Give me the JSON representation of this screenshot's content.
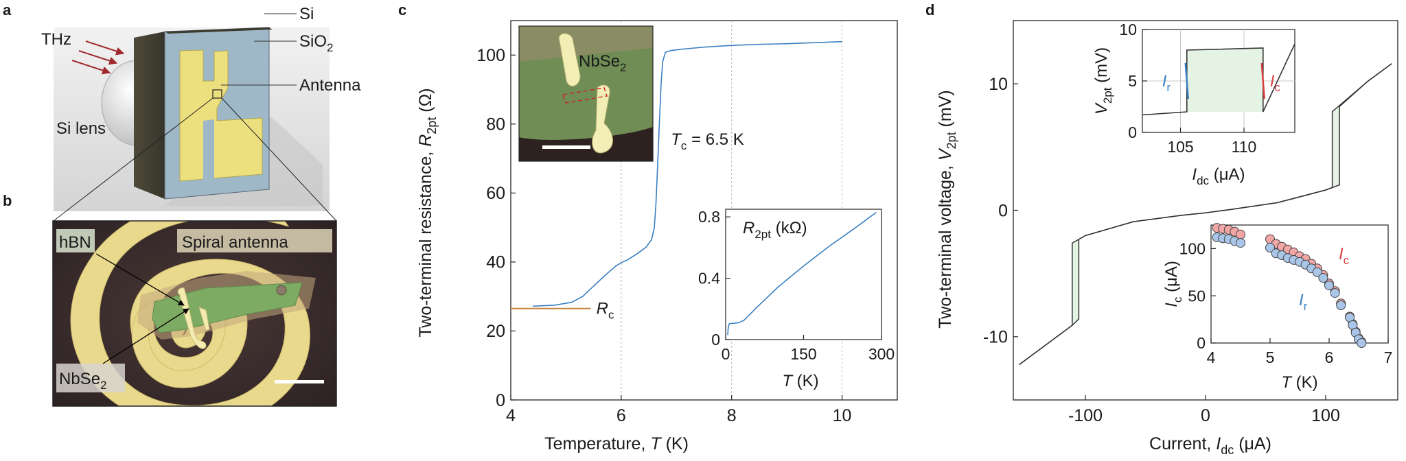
{
  "panels": {
    "a": {
      "letter": "a",
      "labels": {
        "si": "Si",
        "sio2_main": "SiO",
        "sio2_sub": "2",
        "antenna": "Antenna",
        "thz": "THz",
        "lens": "Si lens"
      }
    },
    "b": {
      "letter": "b",
      "labels": {
        "hbn": "hBN",
        "spiral": "Spiral antenna",
        "nbse2_main": "NbSe",
        "nbse2_sub": "2"
      }
    },
    "c": {
      "letter": "c"
    },
    "d": {
      "letter": "d"
    }
  },
  "text_c": {
    "ylabel_main": "Two-terminal resistance, ",
    "ylabel_var": "R",
    "ylabel_sub": "2pt",
    "ylabel_unit": " (Ω)",
    "xlabel_main": "Temperature, ",
    "xlabel_var": "T",
    "xlabel_unit": " (K)",
    "tc_var": "T",
    "tc_sub": "c",
    "tc_value": " = 6.5 K",
    "rc_var": "R",
    "rc_sub": "c",
    "inset_label_main": "NbSe",
    "inset_label_sub": "2",
    "inset2_title_var": "R",
    "inset2_title_sub": "2pt",
    "inset2_title_unit": " (kΩ)",
    "inset2_xlabel_var": "T",
    "inset2_xlabel_unit": " (K)"
  },
  "text_d": {
    "ylabel_main": "Two-terminal voltage, ",
    "ylabel_var": "V",
    "ylabel_sub": "2pt",
    "ylabel_unit": " (mV)",
    "xlabel_main": "Current, ",
    "xlabel_var": "I",
    "xlabel_sub": "dc",
    "xlabel_unit": " (μA)",
    "i1_ylabel_var": "V",
    "i1_ylabel_sub": "2pt",
    "i1_ylabel_unit": " (mV)",
    "i1_xlabel_var": "I",
    "i1_xlabel_sub": "dc",
    "i1_xlabel_unit": " (μA)",
    "i1_ir_var": "I",
    "i1_ir_sub": "r",
    "i1_ic_var": "I",
    "i1_ic_sub": "c",
    "i2_ylabel_var": "I",
    "i2_ylabel_sub": "c",
    "i2_ylabel_unit": " (μA)",
    "i2_xlabel_var": "T",
    "i2_xlabel_unit": " (K)",
    "i2_ic_var": "I",
    "i2_ic_sub": "c",
    "i2_ir_var": "I",
    "i2_ir_sub": "r"
  },
  "colors": {
    "curve_blue": "#3a7fc1",
    "rc_orange": "#c8823a",
    "ic_red": "#d94040",
    "ir_blue": "#3a7fc1",
    "ic_marker": "#f2a6a6",
    "ir_marker": "#a9c6e8",
    "hyst_fill": "#e4f3e4",
    "antenna_gold": "#ecdf7e",
    "spiral_dark": "#3b2c2c",
    "spiral_gold": "#e9d98d",
    "flake_green": "#7dab63",
    "arrow_red": "#a0292e"
  },
  "chart_data": [
    {
      "id": "c-main",
      "type": "line",
      "xlabel": "Temperature, T (K)",
      "ylabel": "Two-terminal resistance, R2pt (Ω)",
      "xlim": [
        4,
        11
      ],
      "ylim": [
        0,
        110
      ],
      "xticks": [
        4,
        6,
        8,
        10
      ],
      "yticks": [
        0,
        20,
        40,
        60,
        80,
        100
      ],
      "grid_x": [
        6,
        8,
        10
      ],
      "series": [
        {
          "x": [
            4.4,
            4.8,
            5.1,
            5.3,
            5.5,
            5.7,
            5.9,
            6.0,
            6.1,
            6.3,
            6.45,
            6.55,
            6.6,
            6.63,
            6.66,
            6.69,
            6.72,
            6.75,
            6.8,
            6.9,
            7.1,
            7.5,
            8.0,
            8.5,
            9.0,
            9.5,
            10.0
          ],
          "y": [
            27.2,
            27.5,
            28.3,
            30.0,
            33.0,
            36.0,
            38.8,
            39.8,
            40.5,
            42.5,
            44.3,
            46.5,
            50.0,
            57.0,
            68.0,
            80.0,
            91.0,
            98.0,
            100.8,
            101.3,
            101.7,
            102.3,
            102.8,
            103.1,
            103.3,
            103.6,
            103.9
          ]
        }
      ],
      "annotations": [
        {
          "text": "Tc = 6.5 K",
          "x": 6.9,
          "y": 74
        },
        {
          "text": "Rc",
          "x": 5.55,
          "y": 25,
          "line_y": 26.5,
          "line_x": [
            4.0,
            5.45
          ]
        }
      ]
    },
    {
      "id": "c-inset",
      "type": "line",
      "title": "R2pt (kΩ)",
      "xlabel": "T (K)",
      "xlim": [
        0,
        300
      ],
      "ylim": [
        0,
        0.85
      ],
      "xticks": [
        0,
        150,
        300
      ],
      "yticks": [
        0,
        0.4,
        0.8
      ],
      "series": [
        {
          "x": [
            4,
            5,
            7,
            8,
            15,
            25,
            35,
            60,
            100,
            150,
            200,
            250,
            290
          ],
          "y": [
            0.03,
            0.08,
            0.103,
            0.105,
            0.106,
            0.11,
            0.125,
            0.21,
            0.34,
            0.48,
            0.61,
            0.73,
            0.83
          ]
        }
      ]
    },
    {
      "id": "d-main",
      "type": "line",
      "xlabel": "Current, Idc (μA)",
      "ylabel": "Two-terminal voltage, V2pt (mV)",
      "xlim": [
        -160,
        160
      ],
      "ylim": [
        -15,
        15
      ],
      "xticks": [
        -100,
        0,
        100
      ],
      "yticks": [
        -10,
        0,
        10
      ],
      "series": [
        {
          "name": "sweep-up",
          "x": [
            -155,
            -111,
            -111,
            -100,
            -60,
            -20,
            0,
            20,
            60,
            100,
            111.5,
            111.5,
            135,
            155
          ],
          "y": [
            -12.2,
            -9.1,
            -2.6,
            -2.0,
            -0.9,
            -0.4,
            -0.2,
            0.05,
            0.6,
            1.6,
            2.0,
            8.2,
            10.2,
            11.6
          ]
        },
        {
          "name": "sweep-down",
          "x": [
            -155,
            -111,
            -105.5,
            -105.5,
            -100,
            -60,
            -20,
            0,
            20,
            60,
            100,
            105.5,
            105.5,
            135,
            155
          ],
          "y": [
            -12.2,
            -9.1,
            -8.6,
            -2.3,
            -2.0,
            -0.9,
            -0.4,
            -0.2,
            0.05,
            0.6,
            1.6,
            1.8,
            7.8,
            10.2,
            11.6
          ]
        }
      ]
    },
    {
      "id": "d-inset-top",
      "type": "line",
      "xlabel": "Idc (μA)",
      "ylabel": "V2pt (mV)",
      "xlim": [
        102,
        114
      ],
      "ylim": [
        0,
        10
      ],
      "xticks": [
        105,
        110
      ],
      "yticks": [
        0,
        5,
        10
      ],
      "grid_x": [
        105,
        110
      ],
      "grid_y": [
        5
      ],
      "series": [
        {
          "name": "loop",
          "x": [
            102,
            105.5,
            105.5,
            111.5,
            111.5,
            114
          ],
          "y": [
            1.7,
            2.0,
            8.0,
            8.2,
            2.0,
            8.6
          ]
        }
      ],
      "markers": [
        {
          "label": "Ir",
          "x": 105.5,
          "y": 5
        },
        {
          "label": "Ic",
          "x": 111.5,
          "y": 5
        }
      ]
    },
    {
      "id": "d-inset-bottom",
      "type": "scatter",
      "xlabel": "T (K)",
      "ylabel": "Ic (μA)",
      "xlim": [
        4,
        7
      ],
      "ylim": [
        0,
        125
      ],
      "xticks": [
        4,
        5,
        6,
        7
      ],
      "yticks": [
        0,
        50,
        100
      ],
      "series": [
        {
          "name": "Ic",
          "x": [
            4.1,
            4.2,
            4.3,
            4.4,
            4.5,
            5.0,
            5.1,
            5.2,
            5.3,
            5.4,
            5.5,
            5.6,
            5.7,
            5.8,
            5.9,
            6.0,
            6.1,
            6.2,
            6.35,
            6.4,
            6.45,
            6.5,
            6.55
          ],
          "y": [
            122,
            121,
            120,
            118,
            115,
            110,
            105,
            102,
            99,
            96,
            92,
            89,
            84,
            79,
            72,
            63,
            55,
            42,
            28,
            20,
            12,
            5,
            1
          ]
        },
        {
          "name": "Ir",
          "x": [
            4.1,
            4.2,
            4.3,
            4.4,
            4.5,
            5.0,
            5.1,
            5.2,
            5.3,
            5.4,
            5.5,
            5.6,
            5.7,
            5.8,
            5.9,
            6.0,
            6.1,
            6.2,
            6.35,
            6.4,
            6.45,
            6.5,
            6.55
          ],
          "y": [
            112,
            111,
            110,
            108,
            106,
            101,
            95,
            93,
            90,
            88,
            86,
            83,
            79,
            75,
            69,
            61,
            53,
            40,
            27,
            19,
            11,
            4,
            0
          ]
        }
      ]
    }
  ]
}
